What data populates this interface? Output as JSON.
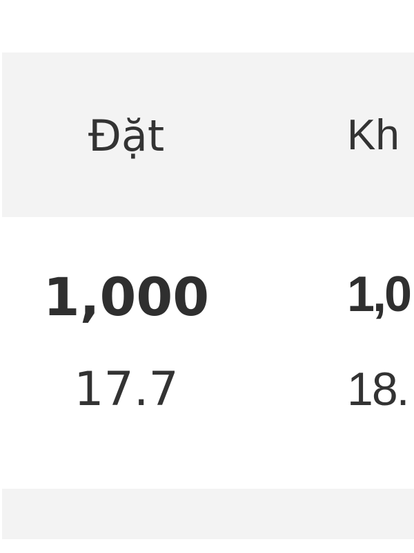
{
  "table": {
    "columns": [
      {
        "header": "Đặt",
        "value": "1,000",
        "subvalue": "17.7"
      },
      {
        "header": "Kh",
        "value": "1,0",
        "subvalue": "18."
      }
    ]
  }
}
